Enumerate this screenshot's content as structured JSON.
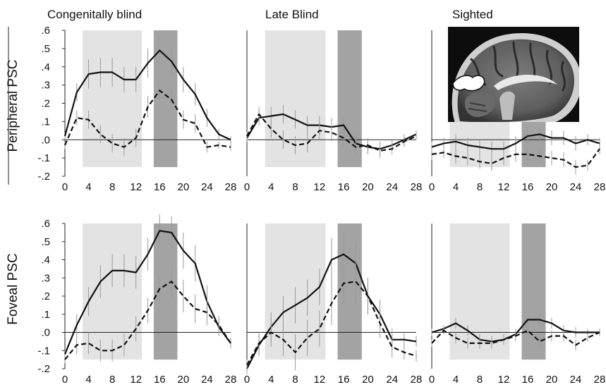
{
  "figure": {
    "column_titles": [
      "Congenitally blind",
      "Late Blind",
      "Sighted"
    ],
    "row_labels": [
      "Peripheral PSC",
      "Foveal PSC"
    ],
    "inset": {
      "kind": "brain-mri-sagittal-slice",
      "panel": "peripheral-sighted"
    }
  },
  "colors": {
    "light_band": "#e3e3e3",
    "dark_band": "#a3a3a3",
    "line": "#111111",
    "error_bar": "#999999",
    "axis": "#222222"
  },
  "chart_data": [
    {
      "id": "peripheral-congenitally-blind",
      "type": "line",
      "row": "Peripheral PSC",
      "column": "Congenitally blind",
      "x": [
        0,
        2,
        4,
        6,
        8,
        10,
        12,
        14,
        16,
        18,
        20,
        22,
        24,
        26,
        28
      ],
      "xticks": [
        "0",
        "4",
        "8",
        "12",
        "16",
        "20",
        "24",
        "28"
      ],
      "yticks": [
        ".6",
        ".5",
        ".4",
        ".3",
        ".2",
        ".1",
        ".0",
        "-.1",
        "-.2"
      ],
      "ylim": [
        -0.2,
        0.6
      ],
      "bands": [
        {
          "shade": "light",
          "x0": 3,
          "x1": 13
        },
        {
          "shade": "dark",
          "x0": 15,
          "x1": 19
        }
      ],
      "series": [
        {
          "style": "solid",
          "values": [
            0.02,
            0.26,
            0.36,
            0.37,
            0.37,
            0.33,
            0.33,
            0.42,
            0.49,
            0.43,
            0.33,
            0.25,
            0.12,
            0.03,
            0.0
          ],
          "errors": [
            0.02,
            0.05,
            0.08,
            0.08,
            0.08,
            0.07,
            0.07,
            0.08,
            0.07,
            0.08,
            0.07,
            0.06,
            0.05,
            0.03,
            0.02
          ]
        },
        {
          "style": "dashed",
          "values": [
            -0.03,
            0.12,
            0.11,
            0.03,
            -0.02,
            -0.04,
            0.01,
            0.18,
            0.27,
            0.22,
            0.11,
            0.09,
            -0.04,
            -0.03,
            -0.04
          ],
          "errors": [
            0.02,
            0.04,
            0.05,
            0.05,
            0.05,
            0.05,
            0.05,
            0.06,
            0.06,
            0.06,
            0.05,
            0.05,
            0.03,
            0.02,
            0.02
          ]
        }
      ]
    },
    {
      "id": "peripheral-late-blind",
      "type": "line",
      "row": "Peripheral PSC",
      "column": "Late Blind",
      "x": [
        0,
        2,
        4,
        6,
        8,
        10,
        12,
        14,
        16,
        18,
        20,
        22,
        24,
        26,
        28
      ],
      "xticks": [
        "0",
        "4",
        "8",
        "12",
        "16",
        "20",
        "24",
        "28"
      ],
      "ylim": [
        -0.2,
        0.6
      ],
      "bands": [
        {
          "shade": "light",
          "x0": 3,
          "x1": 13
        },
        {
          "shade": "dark",
          "x0": 15,
          "x1": 19
        }
      ],
      "series": [
        {
          "style": "solid",
          "values": [
            0.01,
            0.12,
            0.13,
            0.14,
            0.11,
            0.08,
            0.08,
            0.07,
            0.08,
            -0.02,
            -0.04,
            -0.05,
            -0.03,
            0.0,
            0.03
          ],
          "errors": [
            0.02,
            0.04,
            0.05,
            0.05,
            0.05,
            0.05,
            0.05,
            0.05,
            0.05,
            0.05,
            0.04,
            0.04,
            0.03,
            0.03,
            0.02
          ]
        },
        {
          "style": "dashed",
          "values": [
            0.02,
            0.14,
            0.06,
            0.0,
            -0.03,
            -0.02,
            0.05,
            0.04,
            0.01,
            -0.04,
            -0.03,
            -0.06,
            -0.05,
            -0.01,
            0.02
          ],
          "errors": [
            0.02,
            0.04,
            0.05,
            0.05,
            0.05,
            0.05,
            0.05,
            0.05,
            0.05,
            0.05,
            0.04,
            0.04,
            0.03,
            0.03,
            0.02
          ]
        }
      ]
    },
    {
      "id": "peripheral-sighted",
      "type": "line",
      "row": "Peripheral PSC",
      "column": "Sighted",
      "x": [
        0,
        2,
        4,
        6,
        8,
        10,
        12,
        14,
        16,
        18,
        20,
        22,
        24,
        26,
        28
      ],
      "xticks": [
        "0",
        "4",
        "8",
        "12",
        "16",
        "20",
        "24",
        "28"
      ],
      "ylim": [
        -0.2,
        0.6
      ],
      "bands": [
        {
          "shade": "light",
          "x0": 3,
          "x1": 13
        },
        {
          "shade": "dark",
          "x0": 15,
          "x1": 19
        }
      ],
      "series": [
        {
          "style": "solid",
          "values": [
            -0.04,
            -0.02,
            -0.01,
            -0.03,
            -0.04,
            -0.05,
            -0.05,
            -0.02,
            0.02,
            0.03,
            0.01,
            0.01,
            -0.02,
            0.0,
            -0.02
          ],
          "errors": [
            0.03,
            0.03,
            0.04,
            0.04,
            0.04,
            0.04,
            0.04,
            0.04,
            0.04,
            0.04,
            0.04,
            0.04,
            0.04,
            0.03,
            0.03
          ]
        },
        {
          "style": "dashed",
          "values": [
            -0.08,
            -0.07,
            -0.09,
            -0.1,
            -0.12,
            -0.13,
            -0.1,
            -0.08,
            -0.08,
            -0.09,
            -0.1,
            -0.11,
            -0.15,
            -0.14,
            -0.05
          ],
          "errors": [
            0.03,
            0.03,
            0.04,
            0.04,
            0.04,
            0.04,
            0.04,
            0.04,
            0.04,
            0.04,
            0.04,
            0.04,
            0.04,
            0.03,
            0.03
          ]
        }
      ]
    },
    {
      "id": "foveal-congenitally-blind",
      "type": "line",
      "row": "Foveal PSC",
      "column": "Congenitally blind",
      "x": [
        0,
        2,
        4,
        6,
        8,
        10,
        12,
        14,
        16,
        18,
        20,
        22,
        24,
        26,
        28
      ],
      "xticks": [
        "0",
        "4",
        "8",
        "12",
        "16",
        "20",
        "24",
        "28"
      ],
      "yticks": [
        ".6",
        ".5",
        ".4",
        ".3",
        ".2",
        ".1",
        ".0",
        "-.1",
        "-.2"
      ],
      "ylim": [
        -0.2,
        0.6
      ],
      "bands": [
        {
          "shade": "light",
          "x0": 3,
          "x1": 13
        },
        {
          "shade": "dark",
          "x0": 15,
          "x1": 19
        }
      ],
      "series": [
        {
          "style": "solid",
          "values": [
            -0.12,
            0.04,
            0.17,
            0.28,
            0.34,
            0.34,
            0.33,
            0.43,
            0.56,
            0.55,
            0.45,
            0.38,
            0.17,
            0.03,
            -0.06
          ],
          "errors": [
            0.02,
            0.06,
            0.08,
            0.09,
            0.09,
            0.09,
            0.09,
            0.09,
            0.09,
            0.09,
            0.1,
            0.1,
            0.09,
            0.05,
            0.03
          ]
        },
        {
          "style": "dashed",
          "values": [
            -0.15,
            -0.07,
            -0.06,
            -0.1,
            -0.1,
            -0.07,
            0.02,
            0.12,
            0.24,
            0.28,
            0.2,
            0.13,
            0.11,
            0.04,
            -0.06
          ],
          "errors": [
            0.02,
            0.05,
            0.06,
            0.06,
            0.06,
            0.06,
            0.07,
            0.07,
            0.08,
            0.09,
            0.09,
            0.08,
            0.07,
            0.05,
            0.03
          ]
        }
      ]
    },
    {
      "id": "foveal-late-blind",
      "type": "line",
      "row": "Foveal PSC",
      "column": "Late Blind",
      "x": [
        0,
        2,
        4,
        6,
        8,
        10,
        12,
        14,
        16,
        18,
        20,
        22,
        24,
        26,
        28
      ],
      "xticks": [
        "0",
        "4",
        "8",
        "12",
        "16",
        "20",
        "24",
        "28"
      ],
      "ylim": [
        -0.2,
        0.6
      ],
      "bands": [
        {
          "shade": "light",
          "x0": 3,
          "x1": 13
        },
        {
          "shade": "dark",
          "x0": 15,
          "x1": 19
        }
      ],
      "series": [
        {
          "style": "solid",
          "values": [
            -0.2,
            -0.07,
            0.03,
            0.11,
            0.15,
            0.19,
            0.25,
            0.4,
            0.43,
            0.38,
            0.2,
            0.1,
            -0.04,
            -0.04,
            -0.05
          ],
          "errors": [
            0.03,
            0.06,
            0.08,
            0.09,
            0.1,
            0.1,
            0.1,
            0.12,
            0.12,
            0.12,
            0.1,
            0.08,
            0.06,
            0.04,
            0.03
          ]
        },
        {
          "style": "dashed",
          "values": [
            -0.18,
            -0.06,
            0.0,
            -0.04,
            -0.11,
            -0.03,
            0.02,
            0.16,
            0.27,
            0.28,
            0.2,
            0.05,
            -0.08,
            -0.11,
            -0.13
          ],
          "errors": [
            0.03,
            0.06,
            0.08,
            0.09,
            0.1,
            0.1,
            0.1,
            0.12,
            0.12,
            0.12,
            0.1,
            0.08,
            0.06,
            0.04,
            0.03
          ]
        }
      ]
    },
    {
      "id": "foveal-sighted",
      "type": "line",
      "row": "Foveal PSC",
      "column": "Sighted",
      "x": [
        0,
        2,
        4,
        6,
        8,
        10,
        12,
        14,
        16,
        18,
        20,
        22,
        24,
        26,
        28
      ],
      "xticks": [
        "0",
        "4",
        "8",
        "12",
        "16",
        "20",
        "24",
        "28"
      ],
      "ylim": [
        -0.2,
        0.6
      ],
      "bands": [
        {
          "shade": "light",
          "x0": 3,
          "x1": 13
        },
        {
          "shade": "dark",
          "x0": 15,
          "x1": 19
        }
      ],
      "series": [
        {
          "style": "solid",
          "values": [
            0.0,
            0.02,
            0.05,
            0.01,
            -0.04,
            -0.05,
            -0.04,
            -0.01,
            0.07,
            0.07,
            0.05,
            0.01,
            0.0,
            0.0,
            0.0
          ],
          "errors": [
            0.02,
            0.02,
            0.03,
            0.03,
            0.03,
            0.03,
            0.03,
            0.03,
            0.03,
            0.03,
            0.03,
            0.03,
            0.03,
            0.02,
            0.02
          ]
        },
        {
          "style": "dashed",
          "values": [
            -0.06,
            0.01,
            -0.03,
            -0.06,
            -0.06,
            -0.06,
            -0.04,
            -0.02,
            0.01,
            -0.05,
            -0.02,
            -0.02,
            -0.07,
            -0.03,
            0.0
          ],
          "errors": [
            0.02,
            0.02,
            0.03,
            0.03,
            0.03,
            0.03,
            0.03,
            0.03,
            0.03,
            0.03,
            0.03,
            0.03,
            0.03,
            0.02,
            0.02
          ]
        }
      ]
    }
  ]
}
